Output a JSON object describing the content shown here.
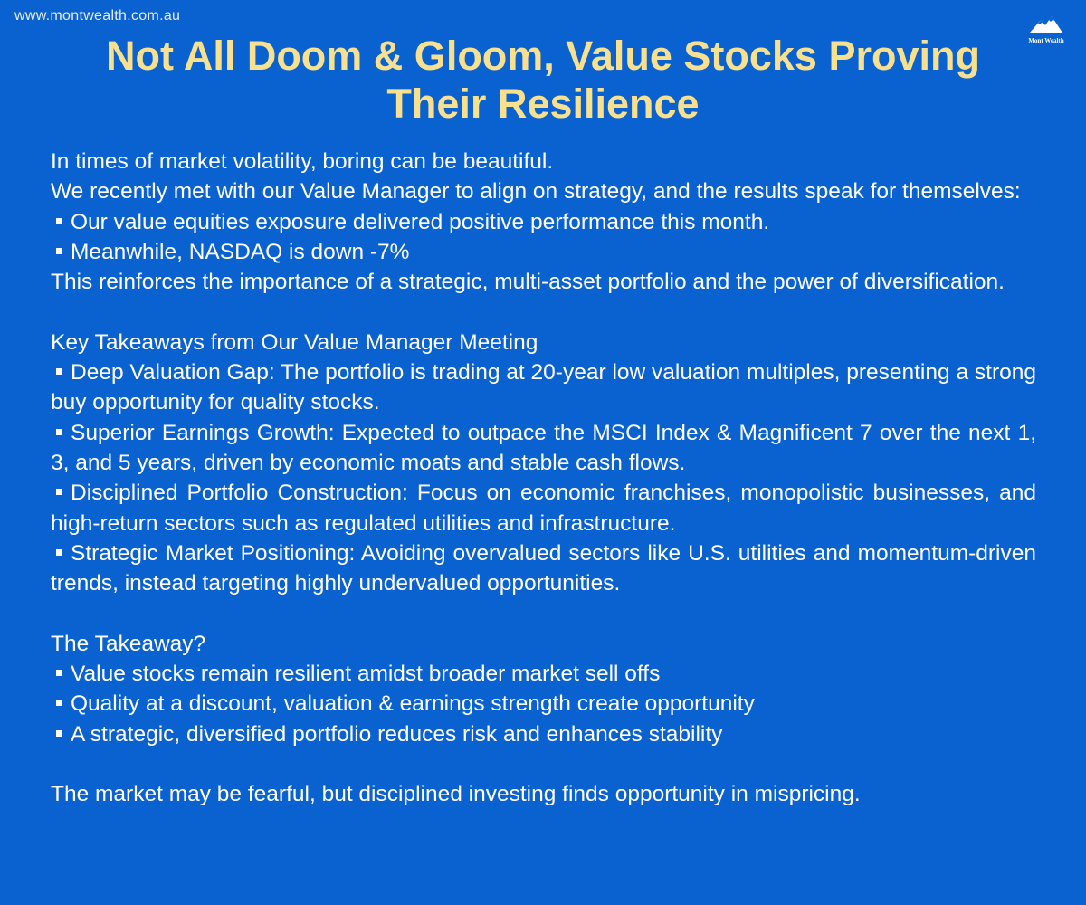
{
  "header": {
    "website": "www.montwealth.com.au",
    "logo_text": "Mont Wealth"
  },
  "title": "Not All Doom & Gloom, Value Stocks Proving Their Resilience",
  "intro": {
    "lines": [
      "In times of market volatility, boring can be beautiful.",
      "We recently met with our Value Manager to align on strategy, and the results speak for themselves:"
    ],
    "bullets": [
      "Our value equities exposure delivered positive performance this month.",
      "Meanwhile, NASDAQ is down -7%"
    ],
    "conclusion": "This reinforces the importance of a strategic, multi-asset portfolio and the power of diversification."
  },
  "key_takeaways": {
    "heading": "Key Takeaways from Our Value Manager Meeting",
    "items": [
      "Deep Valuation Gap: The portfolio is trading at 20-year low valuation multiples, presenting a strong buy opportunity for quality stocks.",
      "Superior Earnings Growth: Expected to outpace the MSCI Index & Magnificent 7 over the next 1, 3, and 5 years, driven by economic moats and stable cash flows.",
      "Disciplined Portfolio Construction: Focus on economic franchises, monopolistic businesses, and high-return sectors such as regulated utilities and infrastructure.",
      "Strategic Market Positioning: Avoiding overvalued sectors like U.S. utilities and momentum-driven trends, instead targeting highly undervalued opportunities."
    ]
  },
  "the_takeaway": {
    "heading": "The Takeaway?",
    "items": [
      "Value stocks remain resilient amidst broader market sell offs",
      "Quality at a discount, valuation & earnings strength create opportunity",
      "A strategic, diversified portfolio reduces risk and enhances stability"
    ]
  },
  "closing": "The market may be fearful, but disciplined investing finds opportunity in mispricing."
}
